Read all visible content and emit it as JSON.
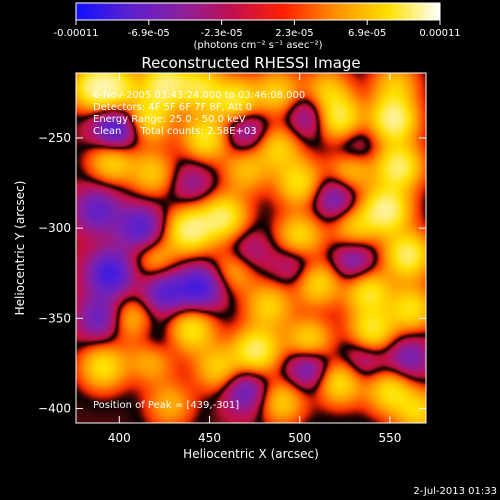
{
  "colorbar": {
    "tick_labels": [
      "-0.00011",
      "-6.9e-05",
      "-2.3e-05",
      "2.3e-05",
      "6.9e-05",
      "0.00011"
    ],
    "unit_label": "(photons cm⁻² s⁻¹ asec⁻²)",
    "colors": [
      "#1010ff",
      "#5a20d0",
      "#8a20a0",
      "#c01050",
      "#ff2000",
      "#ff9000",
      "#ffe000",
      "#ffffff"
    ]
  },
  "chart_data": {
    "type": "heatmap",
    "title": "Reconstructed RHESSI Image",
    "xlabel": "Heliocentric X (arcsec)",
    "ylabel": "Heliocentric Y (arcsec)",
    "xlim": [
      376,
      570
    ],
    "ylim": [
      -408,
      -214
    ],
    "xticks": [
      400,
      450,
      500,
      550
    ],
    "yticks": [
      -250,
      -300,
      -350,
      -400
    ],
    "vlim": [
      -0.00011,
      0.00011
    ],
    "annotations": [
      "6-Nov-2005 03:43:24.000 to 03:46:08.000",
      "Detectors: 4F 5F 6F 7F 8F, Att 0",
      "Energy Range: 25.0 - 50.0 keV",
      "Clean      Total counts: 2.58E+03"
    ],
    "peak_label": "Position of Peak = [439,-301]",
    "sources": [
      {
        "x": 385,
        "y": -222,
        "v": 0.8
      },
      {
        "x": 398,
        "y": -222,
        "v": 0.75
      },
      {
        "x": 425,
        "y": -220,
        "v": 0.9
      },
      {
        "x": 445,
        "y": -222,
        "v": 0.7
      },
      {
        "x": 465,
        "y": -230,
        "v": 0.8
      },
      {
        "x": 488,
        "y": -225,
        "v": 0.6
      },
      {
        "x": 515,
        "y": -224,
        "v": 0.55
      },
      {
        "x": 553,
        "y": -220,
        "v": 0.5
      },
      {
        "x": 416,
        "y": -240,
        "v": 0.7
      },
      {
        "x": 448,
        "y": -250,
        "v": 0.75
      },
      {
        "x": 522,
        "y": -240,
        "v": 0.85
      },
      {
        "x": 552,
        "y": -240,
        "v": 1.0
      },
      {
        "x": 488,
        "y": -255,
        "v": 0.6
      },
      {
        "x": 396,
        "y": -262,
        "v": 0.7
      },
      {
        "x": 419,
        "y": -270,
        "v": 0.55
      },
      {
        "x": 470,
        "y": -268,
        "v": 0.5
      },
      {
        "x": 500,
        "y": -275,
        "v": 0.7
      },
      {
        "x": 528,
        "y": -268,
        "v": 0.65
      },
      {
        "x": 555,
        "y": -266,
        "v": 0.9
      },
      {
        "x": 439,
        "y": -301,
        "v": 0.95
      },
      {
        "x": 458,
        "y": -294,
        "v": 0.85
      },
      {
        "x": 500,
        "y": -305,
        "v": 0.7
      },
      {
        "x": 530,
        "y": -300,
        "v": 0.6
      },
      {
        "x": 548,
        "y": -290,
        "v": 1.0
      },
      {
        "x": 560,
        "y": -315,
        "v": 0.9
      },
      {
        "x": 420,
        "y": -318,
        "v": 0.5
      },
      {
        "x": 465,
        "y": -322,
        "v": 0.65
      },
      {
        "x": 510,
        "y": -330,
        "v": 0.7
      },
      {
        "x": 538,
        "y": -335,
        "v": 0.75
      },
      {
        "x": 483,
        "y": -343,
        "v": 0.6
      },
      {
        "x": 562,
        "y": -345,
        "v": 0.7
      },
      {
        "x": 406,
        "y": -350,
        "v": 0.55
      },
      {
        "x": 440,
        "y": -356,
        "v": 0.75
      },
      {
        "x": 476,
        "y": -368,
        "v": 0.9
      },
      {
        "x": 505,
        "y": -364,
        "v": 0.8
      },
      {
        "x": 540,
        "y": -358,
        "v": 0.8
      },
      {
        "x": 391,
        "y": -377,
        "v": 0.7
      },
      {
        "x": 418,
        "y": -372,
        "v": 0.65
      },
      {
        "x": 455,
        "y": -378,
        "v": 0.6
      },
      {
        "x": 522,
        "y": -385,
        "v": 0.75
      },
      {
        "x": 550,
        "y": -390,
        "v": 0.7
      },
      {
        "x": 490,
        "y": -396,
        "v": 0.6
      },
      {
        "x": 428,
        "y": -398,
        "v": 0.45
      },
      {
        "x": 566,
        "y": -402,
        "v": 0.6
      },
      {
        "x": 398,
        "y": -246,
        "v": -0.9
      },
      {
        "x": 388,
        "y": -290,
        "v": -0.6
      },
      {
        "x": 412,
        "y": -300,
        "v": -0.7
      },
      {
        "x": 395,
        "y": -325,
        "v": -0.85
      },
      {
        "x": 425,
        "y": -335,
        "v": -0.7
      },
      {
        "x": 445,
        "y": -333,
        "v": -0.8
      },
      {
        "x": 470,
        "y": -315,
        "v": -0.5
      },
      {
        "x": 390,
        "y": -350,
        "v": -0.6
      },
      {
        "x": 420,
        "y": -365,
        "v": -0.4
      },
      {
        "x": 520,
        "y": -283,
        "v": -0.6
      },
      {
        "x": 530,
        "y": -318,
        "v": -0.55
      },
      {
        "x": 498,
        "y": -320,
        "v": -0.4
      },
      {
        "x": 505,
        "y": -376,
        "v": -0.75
      },
      {
        "x": 470,
        "y": -390,
        "v": -0.6
      },
      {
        "x": 535,
        "y": -372,
        "v": -0.45
      },
      {
        "x": 470,
        "y": -245,
        "v": -0.55
      },
      {
        "x": 505,
        "y": -238,
        "v": -0.5
      },
      {
        "x": 530,
        "y": -255,
        "v": -0.4
      },
      {
        "x": 560,
        "y": -372,
        "v": -0.5
      },
      {
        "x": 440,
        "y": -275,
        "v": -0.35
      }
    ]
  },
  "footer": {
    "timestamp": "2-Jul-2013 01:33"
  }
}
